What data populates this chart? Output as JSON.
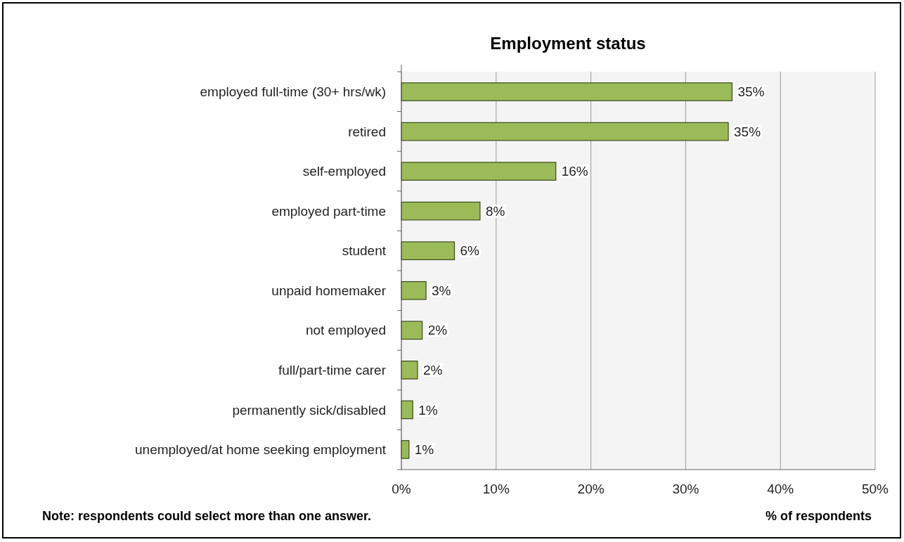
{
  "chart_data": {
    "type": "bar",
    "orientation": "horizontal",
    "title": "Employment status",
    "xlabel": "% of respondents",
    "categories": [
      "employed full-time (30+ hrs/wk)",
      "retired",
      "self-employed",
      "employed part-time",
      "student",
      "unpaid homemaker",
      "not employed",
      "full/part-time carer",
      "permanently sick/disabled",
      "unemployed/at home seeking employment"
    ],
    "values": [
      34.9,
      34.5,
      16.3,
      8.3,
      5.6,
      2.6,
      2.2,
      1.7,
      1.2,
      0.8
    ],
    "value_labels": [
      "35%",
      "35%",
      "16%",
      "8%",
      "6%",
      "3%",
      "2%",
      "2%",
      "1%",
      "1%"
    ],
    "color": "#9bbb59",
    "xlim": [
      0,
      50
    ],
    "xticks": [
      {
        "value": 0,
        "label": "0%"
      },
      {
        "value": 10,
        "label": "10%"
      },
      {
        "value": 20,
        "label": "20%"
      },
      {
        "value": 30,
        "label": "30%"
      },
      {
        "value": 40,
        "label": "40%"
      },
      {
        "value": 50,
        "label": "50%"
      }
    ],
    "grid": "x",
    "annotations": [
      "Note: respondents could select more than one answer."
    ]
  }
}
